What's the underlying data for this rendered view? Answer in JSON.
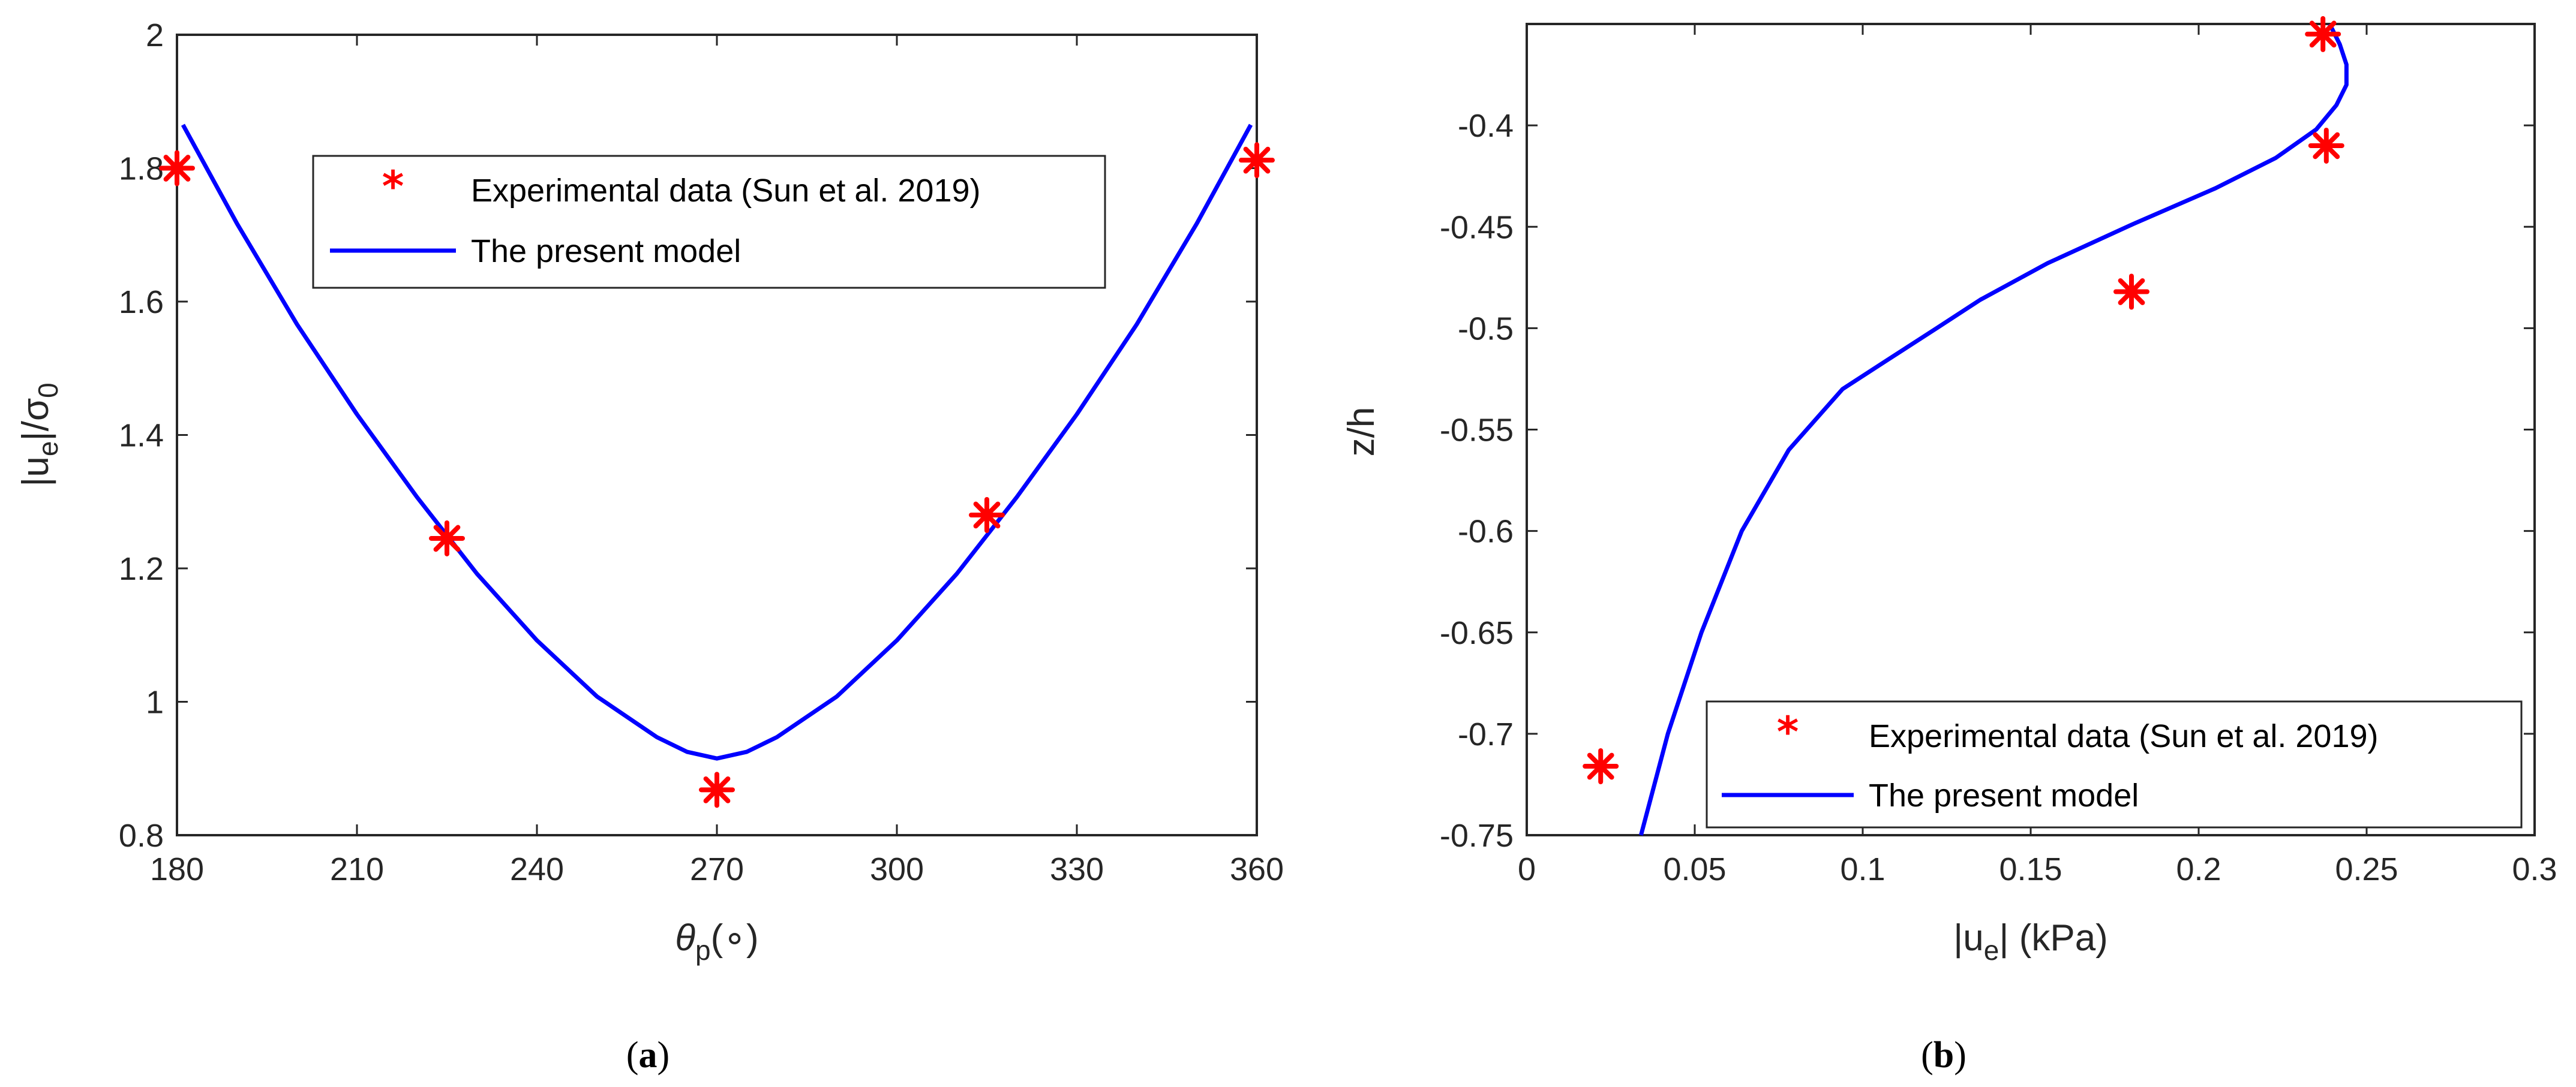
{
  "colors": {
    "series_data": "#ff0000",
    "series_model": "#0000ff",
    "axis": "#262626"
  },
  "chart_data": [
    {
      "id": "a",
      "type": "line",
      "caption_letter": "a",
      "xlabel": {
        "base": "θ",
        "sub": "p",
        "rest": "(∘)"
      },
      "ylabel": {
        "pre": "|u",
        "sub1": "e",
        "mid": "|/σ",
        "sub2": "0"
      },
      "xlim": [
        180,
        360
      ],
      "ylim": [
        0.8,
        2.0
      ],
      "xticks": [
        180,
        210,
        240,
        270,
        300,
        330,
        360
      ],
      "yticks": [
        0.8,
        1.0,
        1.2,
        1.4,
        1.6,
        1.8,
        2.0
      ],
      "xtick_labels": [
        "180",
        "210",
        "240",
        "270",
        "300",
        "330",
        "360"
      ],
      "ytick_labels": [
        "0.8",
        "1",
        "1.2",
        "1.4",
        "1.6",
        "1.8",
        "2"
      ],
      "legend_position": "top-right",
      "series": [
        {
          "name": "Experimental data (Sun et al. 2019)",
          "kind": "marker",
          "x": [
            180,
            225,
            270,
            315,
            360
          ],
          "y": [
            1.8,
            1.245,
            0.868,
            1.28,
            1.812
          ]
        },
        {
          "name": "The present model",
          "kind": "line",
          "x": [
            181,
            190,
            200,
            210,
            220,
            230,
            240,
            250,
            260,
            265,
            270,
            275,
            280,
            290,
            300,
            310,
            320,
            330,
            340,
            350,
            359
          ],
          "y": [
            1.865,
            1.717,
            1.566,
            1.431,
            1.307,
            1.192,
            1.092,
            1.008,
            0.947,
            0.925,
            0.915,
            0.925,
            0.947,
            1.008,
            1.092,
            1.192,
            1.307,
            1.431,
            1.566,
            1.717,
            1.865
          ]
        }
      ]
    },
    {
      "id": "b",
      "type": "line",
      "caption_letter": "b",
      "xlabel": {
        "pre": "|u",
        "sub": "e",
        "rest": "| (kPa)"
      },
      "ylabel": {
        "text": "z/h"
      },
      "xlim": [
        0,
        0.3
      ],
      "ylim": [
        -0.75,
        -0.35
      ],
      "xticks": [
        0,
        0.05,
        0.1,
        0.15,
        0.2,
        0.25,
        0.3
      ],
      "yticks": [
        -0.75,
        -0.7,
        -0.65,
        -0.6,
        -0.55,
        -0.5,
        -0.45,
        -0.4
      ],
      "xtick_labels": [
        "0",
        "0.05",
        "0.1",
        "0.15",
        "0.2",
        "0.25",
        "0.3"
      ],
      "ytick_labels": [
        "-0.75",
        "-0.7",
        "-0.65",
        "-0.6",
        "-0.55",
        "-0.5",
        "-0.45",
        "-0.4"
      ],
      "legend_position": "bottom-right",
      "series": [
        {
          "name": "Experimental data (Sun et al. 2019)",
          "kind": "marker",
          "x": [
            0.022,
            0.18,
            0.238,
            0.237
          ],
          "y": [
            -0.716,
            -0.482,
            -0.41,
            -0.355
          ]
        },
        {
          "name": "The present model",
          "kind": "line",
          "x": [
            0.034,
            0.042,
            0.052,
            0.064,
            0.078,
            0.094,
            0.108,
            0.122,
            0.135,
            0.155,
            0.18,
            0.205,
            0.223,
            0.235,
            0.241,
            0.244,
            0.244,
            0.242,
            0.239
          ],
          "y": [
            -0.75,
            -0.7,
            -0.65,
            -0.6,
            -0.56,
            -0.53,
            -0.515,
            -0.5,
            -0.486,
            -0.468,
            -0.449,
            -0.431,
            -0.416,
            -0.402,
            -0.39,
            -0.38,
            -0.37,
            -0.36,
            -0.35
          ]
        }
      ]
    }
  ]
}
